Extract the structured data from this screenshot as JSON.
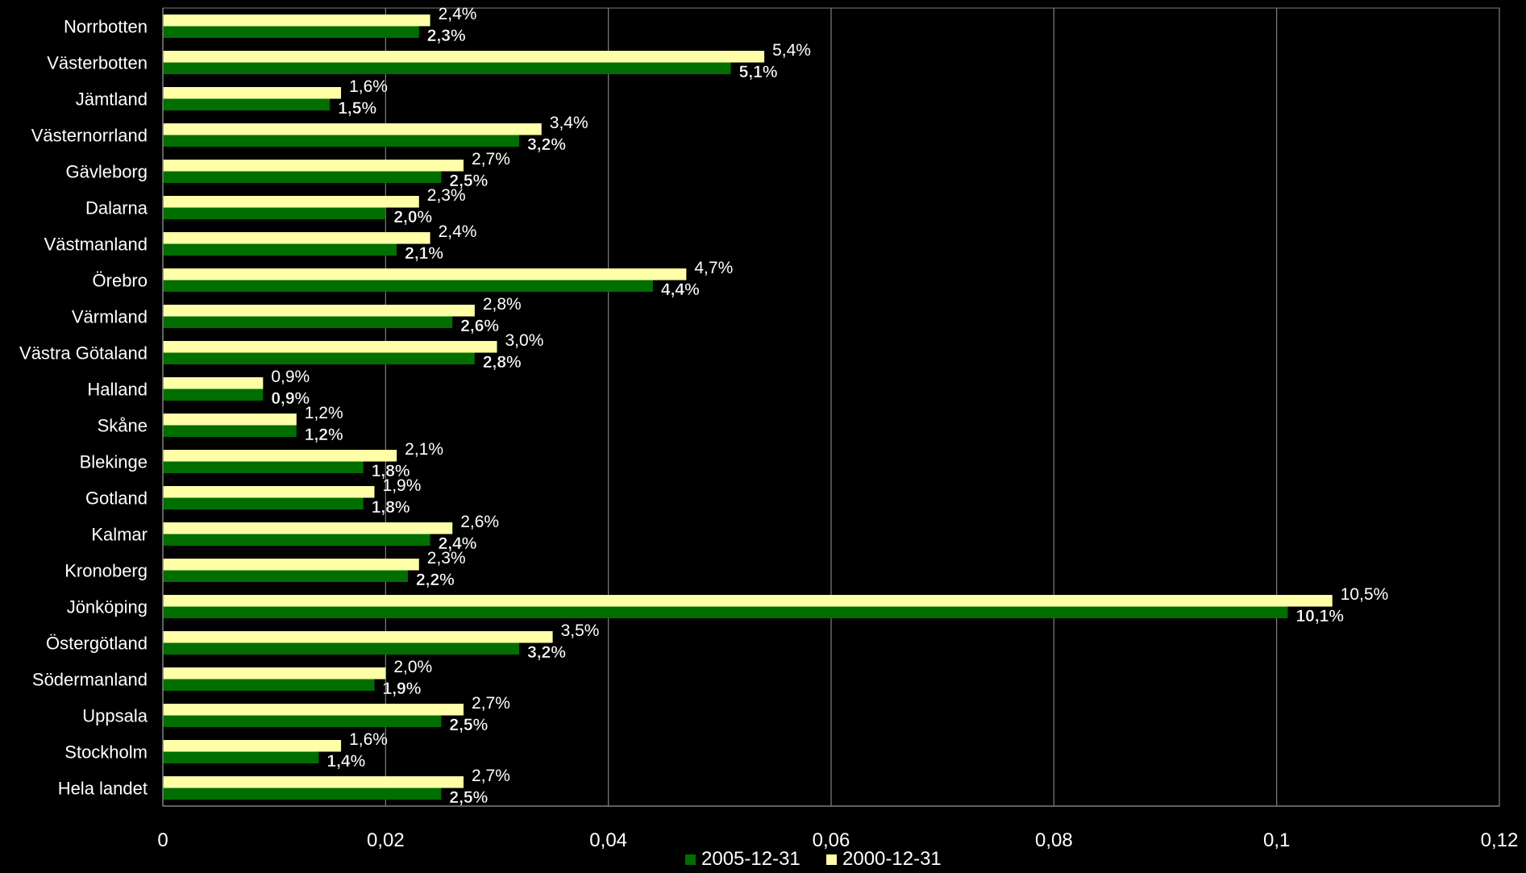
{
  "chart_data": {
    "type": "bar",
    "orientation": "horizontal",
    "categories": [
      "Norrbotten",
      "Västerbotten",
      "Jämtland",
      "Västernorrland",
      "Gävleborg",
      "Dalarna",
      "Västmanland",
      "Örebro",
      "Värmland",
      "Västra Götaland",
      "Halland",
      "Skåne",
      "Blekinge",
      "Gotland",
      "Kalmar",
      "Kronoberg",
      "Jönköping",
      "Östergötland",
      "Södermanland",
      "Uppsala",
      "Stockholm",
      "Hela landet"
    ],
    "series": [
      {
        "name": "2000-12-31",
        "color": "#ffffa8",
        "values": [
          0.024,
          0.054,
          0.016,
          0.034,
          0.027,
          0.023,
          0.024,
          0.047,
          0.028,
          0.03,
          0.009,
          0.012,
          0.021,
          0.019,
          0.026,
          0.023,
          0.105,
          0.035,
          0.02,
          0.027,
          0.016,
          0.027
        ],
        "labels": [
          "2,4%",
          "5,4%",
          "1,6%",
          "3,4%",
          "2,7%",
          "2,3%",
          "2,4%",
          "4,7%",
          "2,8%",
          "3,0%",
          "0,9%",
          "1,2%",
          "2,1%",
          "1,9%",
          "2,6%",
          "2,3%",
          "10,5%",
          "3,5%",
          "2,0%",
          "2,7%",
          "1,6%",
          "2,7%"
        ]
      },
      {
        "name": "2005-12-31",
        "color": "#006e00",
        "values": [
          0.023,
          0.051,
          0.015,
          0.032,
          0.025,
          0.02,
          0.021,
          0.044,
          0.026,
          0.028,
          0.009,
          0.012,
          0.018,
          0.018,
          0.024,
          0.022,
          0.101,
          0.032,
          0.019,
          0.025,
          0.014,
          0.025
        ],
        "labels": [
          "2,3%",
          "5,1%",
          "1,5%",
          "3,2%",
          "2,5%",
          "2,0%",
          "2,1%",
          "4,4%",
          "2,6%",
          "2,8%",
          "0,9%",
          "1,2%",
          "1,8%",
          "1,8%",
          "2,4%",
          "2,2%",
          "10,1%",
          "3,2%",
          "1,9%",
          "2,5%",
          "1,4%",
          "2,5%"
        ]
      }
    ],
    "xlim": [
      0,
      0.12
    ],
    "x_ticks": [
      0,
      0.02,
      0.04,
      0.06,
      0.08,
      0.1,
      0.12
    ],
    "x_tick_labels": [
      "0",
      "0,02",
      "0,04",
      "0,06",
      "0,08",
      "0,1",
      "0,12"
    ],
    "grid": "vertical",
    "legend": {
      "position": "bottom",
      "entries": [
        "2005-12-31",
        "2000-12-31"
      ]
    },
    "background": "#000000",
    "text_color": "#ffffff"
  }
}
